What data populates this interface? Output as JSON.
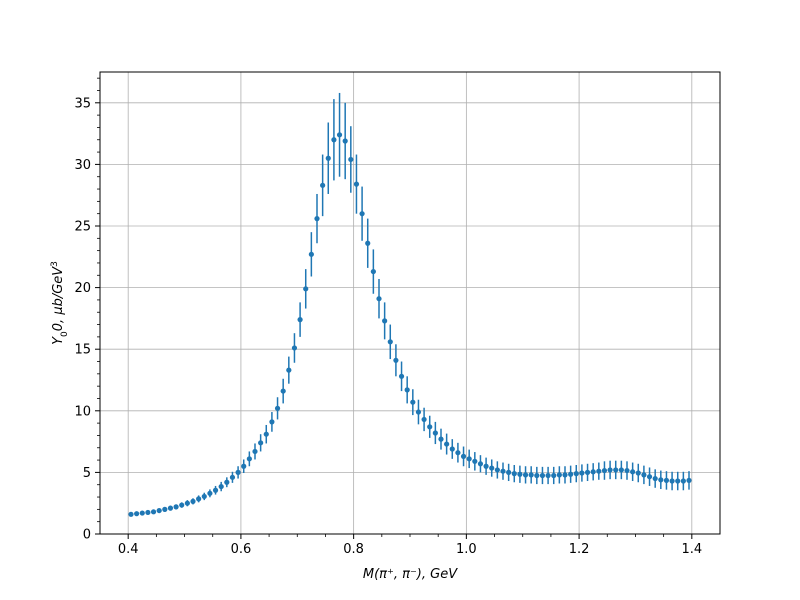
{
  "chart_data": {
    "type": "scatter",
    "xlabel": "M(π⁺, π⁻), GeV",
    "ylabel_main": "Y",
    "ylabel_sub": "0",
    "ylabel_rest": "0, μb/GeV",
    "ylabel_sup": "3",
    "xlim": [
      0.35,
      1.45
    ],
    "ylim": [
      0,
      37.5
    ],
    "xticks": [
      0.4,
      0.6,
      0.8,
      1.0,
      1.2,
      1.4
    ],
    "xtick_labels": [
      "0.4",
      "0.6",
      "0.8",
      "1.0",
      "1.2",
      "1.4"
    ],
    "yticks": [
      0,
      5,
      10,
      15,
      20,
      25,
      30,
      35
    ],
    "ytick_labels": [
      "0",
      "5",
      "10",
      "15",
      "20",
      "25",
      "30",
      "35"
    ],
    "grid": true,
    "color": "#1f77b4",
    "series": [
      {
        "x": [
          0.405,
          0.415,
          0.425,
          0.435,
          0.445,
          0.455,
          0.465,
          0.475,
          0.485,
          0.495,
          0.505,
          0.515,
          0.525,
          0.535,
          0.545,
          0.555,
          0.565,
          0.575,
          0.585,
          0.595,
          0.605,
          0.615,
          0.625,
          0.635,
          0.645,
          0.655,
          0.665,
          0.675,
          0.685,
          0.695,
          0.705,
          0.715,
          0.725,
          0.735,
          0.745,
          0.755,
          0.765,
          0.775,
          0.785,
          0.795,
          0.805,
          0.815,
          0.825,
          0.835,
          0.845,
          0.855,
          0.865,
          0.875,
          0.885,
          0.895,
          0.905,
          0.915,
          0.925,
          0.935,
          0.945,
          0.955,
          0.965,
          0.975,
          0.985,
          0.995,
          1.005,
          1.015,
          1.025,
          1.035,
          1.045,
          1.055,
          1.065,
          1.075,
          1.085,
          1.095,
          1.105,
          1.115,
          1.125,
          1.135,
          1.145,
          1.155,
          1.165,
          1.175,
          1.185,
          1.195,
          1.205,
          1.215,
          1.225,
          1.235,
          1.245,
          1.255,
          1.265,
          1.275,
          1.285,
          1.295,
          1.305,
          1.315,
          1.325,
          1.335,
          1.345,
          1.355,
          1.365,
          1.375,
          1.385,
          1.395
        ],
        "y": [
          1.6,
          1.65,
          1.7,
          1.75,
          1.8,
          1.9,
          2.0,
          2.1,
          2.2,
          2.35,
          2.5,
          2.65,
          2.85,
          3.05,
          3.3,
          3.55,
          3.85,
          4.2,
          4.6,
          5.0,
          5.5,
          6.1,
          6.7,
          7.4,
          8.1,
          9.1,
          10.2,
          11.6,
          13.3,
          15.1,
          17.4,
          19.9,
          22.7,
          25.6,
          28.3,
          30.5,
          32.0,
          32.4,
          31.9,
          30.4,
          28.4,
          26.0,
          23.6,
          21.3,
          19.1,
          17.3,
          15.6,
          14.1,
          12.8,
          11.7,
          10.7,
          9.9,
          9.3,
          8.7,
          8.2,
          7.7,
          7.3,
          6.9,
          6.6,
          6.3,
          6.1,
          5.9,
          5.7,
          5.5,
          5.35,
          5.2,
          5.1,
          5.0,
          4.9,
          4.85,
          4.8,
          4.8,
          4.75,
          4.75,
          4.75,
          4.75,
          4.8,
          4.8,
          4.85,
          4.9,
          4.95,
          5.0,
          5.05,
          5.1,
          5.15,
          5.2,
          5.2,
          5.2,
          5.15,
          5.05,
          4.95,
          4.8,
          4.65,
          4.5,
          4.4,
          4.35,
          4.3,
          4.3,
          4.3,
          4.35
        ],
        "err": [
          0.15,
          0.15,
          0.15,
          0.15,
          0.15,
          0.18,
          0.18,
          0.2,
          0.2,
          0.22,
          0.25,
          0.25,
          0.28,
          0.3,
          0.32,
          0.35,
          0.38,
          0.4,
          0.45,
          0.5,
          0.55,
          0.6,
          0.65,
          0.7,
          0.75,
          0.8,
          0.9,
          1.0,
          1.1,
          1.2,
          1.4,
          1.6,
          1.8,
          2.0,
          2.5,
          2.9,
          3.3,
          3.4,
          3.1,
          2.7,
          2.4,
          2.2,
          2.0,
          1.8,
          1.6,
          1.5,
          1.4,
          1.3,
          1.2,
          1.1,
          1.05,
          1.0,
          0.95,
          0.9,
          0.9,
          0.85,
          0.85,
          0.8,
          0.8,
          0.8,
          0.75,
          0.75,
          0.7,
          0.7,
          0.7,
          0.7,
          0.7,
          0.7,
          0.7,
          0.7,
          0.7,
          0.7,
          0.7,
          0.7,
          0.7,
          0.7,
          0.7,
          0.7,
          0.7,
          0.7,
          0.7,
          0.7,
          0.7,
          0.7,
          0.75,
          0.75,
          0.75,
          0.75,
          0.75,
          0.75,
          0.75,
          0.75,
          0.75,
          0.75,
          0.75,
          0.75,
          0.75,
          0.75,
          0.75,
          0.75
        ]
      }
    ]
  }
}
